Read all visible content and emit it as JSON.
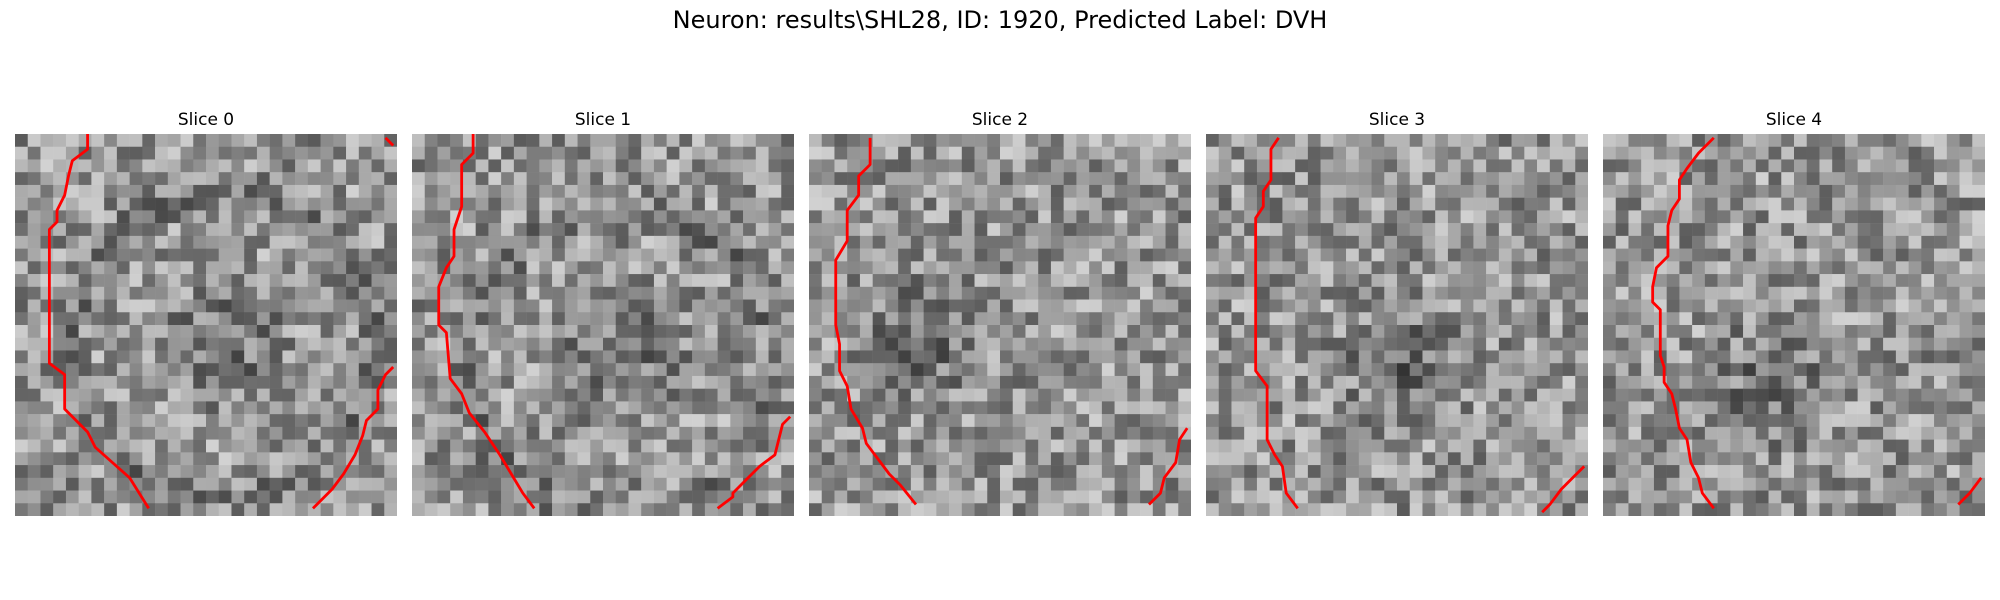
{
  "figure": {
    "title": "Neuron: results\\SHL28, ID: 1920, Predicted Label: DVH"
  },
  "panels": [
    {
      "title": "Slice 0",
      "seed": 11,
      "dark_center": [
        0.55,
        0.55
      ],
      "ring_dark": true,
      "boundaries": [
        [
          [
            0.19,
            0.0
          ],
          [
            0.19,
            0.04
          ],
          [
            0.15,
            0.07
          ],
          [
            0.14,
            0.11
          ],
          [
            0.13,
            0.16
          ],
          [
            0.11,
            0.2
          ],
          [
            0.11,
            0.23
          ],
          [
            0.09,
            0.25
          ],
          [
            0.09,
            0.6
          ],
          [
            0.13,
            0.63
          ],
          [
            0.13,
            0.72
          ],
          [
            0.19,
            0.78
          ],
          [
            0.21,
            0.82
          ],
          [
            0.3,
            0.9
          ],
          [
            0.35,
            0.98
          ]
        ],
        [
          [
            0.97,
            0.01
          ],
          [
            0.99,
            0.03
          ]
        ],
        [
          [
            0.99,
            0.61
          ],
          [
            0.97,
            0.63
          ],
          [
            0.95,
            0.67
          ],
          [
            0.95,
            0.72
          ],
          [
            0.92,
            0.75
          ],
          [
            0.91,
            0.79
          ],
          [
            0.89,
            0.84
          ],
          [
            0.86,
            0.89
          ],
          [
            0.83,
            0.93
          ],
          [
            0.8,
            0.96
          ],
          [
            0.78,
            0.98
          ]
        ]
      ]
    },
    {
      "title": "Slice 1",
      "seed": 23,
      "dark_center": [
        0.55,
        0.6
      ],
      "ring_dark": true,
      "boundaries": [
        [
          [
            0.16,
            0.0
          ],
          [
            0.16,
            0.05
          ],
          [
            0.13,
            0.08
          ],
          [
            0.13,
            0.19
          ],
          [
            0.11,
            0.25
          ],
          [
            0.11,
            0.32
          ],
          [
            0.09,
            0.35
          ],
          [
            0.07,
            0.4
          ],
          [
            0.07,
            0.5
          ],
          [
            0.09,
            0.52
          ],
          [
            0.1,
            0.64
          ],
          [
            0.13,
            0.68
          ],
          [
            0.15,
            0.73
          ],
          [
            0.19,
            0.78
          ],
          [
            0.23,
            0.84
          ],
          [
            0.26,
            0.89
          ],
          [
            0.29,
            0.94
          ],
          [
            0.32,
            0.98
          ]
        ],
        [
          [
            0.99,
            0.74
          ],
          [
            0.97,
            0.76
          ],
          [
            0.95,
            0.84
          ],
          [
            0.91,
            0.87
          ],
          [
            0.88,
            0.9
          ],
          [
            0.84,
            0.94
          ],
          [
            0.84,
            0.95
          ],
          [
            0.8,
            0.98
          ]
        ]
      ]
    },
    {
      "title": "Slice 2",
      "seed": 37,
      "dark_center": [
        0.3,
        0.55
      ],
      "ring_dark": false,
      "boundaries": [
        [
          [
            0.16,
            0.01
          ],
          [
            0.16,
            0.08
          ],
          [
            0.13,
            0.11
          ],
          [
            0.13,
            0.16
          ],
          [
            0.1,
            0.2
          ],
          [
            0.1,
            0.28
          ],
          [
            0.07,
            0.33
          ],
          [
            0.07,
            0.5
          ],
          [
            0.08,
            0.55
          ],
          [
            0.08,
            0.62
          ],
          [
            0.1,
            0.66
          ],
          [
            0.11,
            0.72
          ],
          [
            0.14,
            0.77
          ],
          [
            0.15,
            0.81
          ],
          [
            0.18,
            0.85
          ],
          [
            0.21,
            0.89
          ],
          [
            0.24,
            0.92
          ],
          [
            0.28,
            0.97
          ]
        ],
        [
          [
            0.99,
            0.77
          ],
          [
            0.97,
            0.8
          ],
          [
            0.96,
            0.86
          ],
          [
            0.93,
            0.9
          ],
          [
            0.92,
            0.94
          ],
          [
            0.89,
            0.97
          ]
        ]
      ]
    },
    {
      "title": "Slice 3",
      "seed": 41,
      "dark_center": [
        0.52,
        0.6
      ],
      "ring_dark": false,
      "boundaries": [
        [
          [
            0.19,
            0.01
          ],
          [
            0.17,
            0.04
          ],
          [
            0.17,
            0.12
          ],
          [
            0.15,
            0.15
          ],
          [
            0.15,
            0.19
          ],
          [
            0.13,
            0.22
          ],
          [
            0.13,
            0.62
          ],
          [
            0.16,
            0.66
          ],
          [
            0.16,
            0.8
          ],
          [
            0.18,
            0.84
          ],
          [
            0.2,
            0.87
          ],
          [
            0.21,
            0.94
          ],
          [
            0.24,
            0.98
          ]
        ],
        [
          [
            0.99,
            0.87
          ],
          [
            0.96,
            0.9
          ],
          [
            0.93,
            0.93
          ],
          [
            0.9,
            0.97
          ],
          [
            0.88,
            0.99
          ]
        ]
      ]
    },
    {
      "title": "Slice 4",
      "seed": 53,
      "dark_center": [
        0.45,
        0.65
      ],
      "ring_dark": false,
      "boundaries": [
        [
          [
            0.29,
            0.01
          ],
          [
            0.25,
            0.05
          ],
          [
            0.22,
            0.09
          ],
          [
            0.2,
            0.12
          ],
          [
            0.2,
            0.17
          ],
          [
            0.18,
            0.2
          ],
          [
            0.17,
            0.24
          ],
          [
            0.17,
            0.32
          ],
          [
            0.14,
            0.35
          ],
          [
            0.13,
            0.4
          ],
          [
            0.13,
            0.44
          ],
          [
            0.15,
            0.46
          ],
          [
            0.15,
            0.58
          ],
          [
            0.16,
            0.61
          ],
          [
            0.16,
            0.65
          ],
          [
            0.18,
            0.68
          ],
          [
            0.19,
            0.72
          ],
          [
            0.2,
            0.77
          ],
          [
            0.22,
            0.8
          ],
          [
            0.23,
            0.86
          ],
          [
            0.25,
            0.9
          ],
          [
            0.26,
            0.94
          ],
          [
            0.29,
            0.98
          ]
        ],
        [
          [
            0.99,
            0.9
          ],
          [
            0.96,
            0.94
          ],
          [
            0.93,
            0.97
          ]
        ]
      ]
    }
  ],
  "colors": {
    "boundary": "#ff0000",
    "background": "#ffffff"
  }
}
